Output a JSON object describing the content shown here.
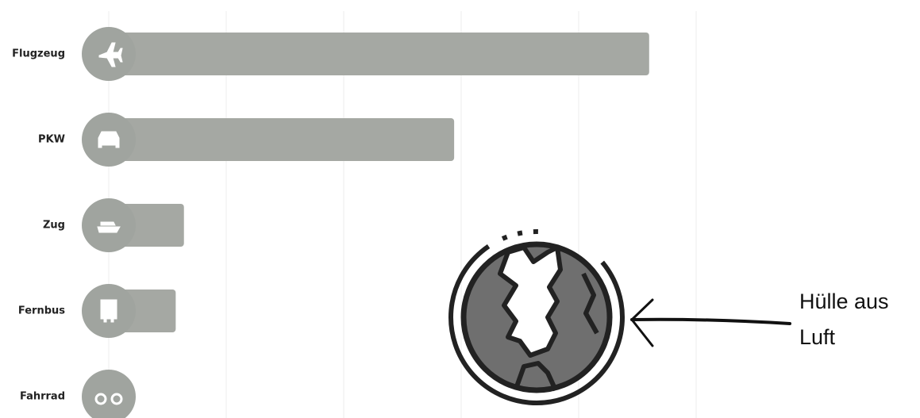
{
  "chart_data": {
    "type": "bar",
    "orientation": "horizontal",
    "categories": [
      "Flugzeug",
      "PKW",
      "Zug",
      "Fernbus",
      "Fahrrad"
    ],
    "values": [
      4.6,
      2.94,
      0.64,
      0.57,
      0
    ],
    "color": "#a5a8a3",
    "xlim": [
      0,
      6.5
    ],
    "xticks": [
      0,
      1,
      2,
      3,
      4,
      5
    ],
    "grid": true,
    "annotation": [
      "Hülle aus",
      "Luft"
    ]
  }
}
